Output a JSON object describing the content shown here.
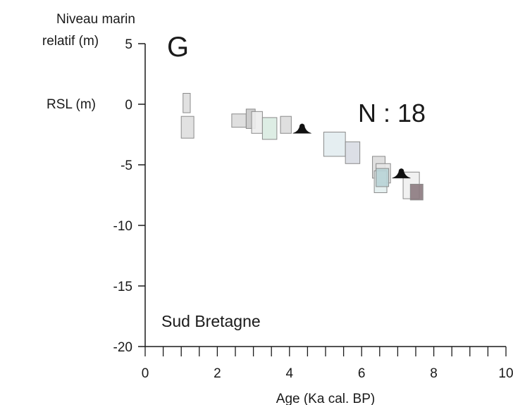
{
  "panel": {
    "letter": "G",
    "count_label": "N : 18",
    "region": "Sud Bretagne"
  },
  "chart_data": {
    "type": "scatter",
    "title": "",
    "xlabel": "Age (Ka cal. BP)",
    "ylabel_lines": [
      "Niveau marin",
      "relatif (m)"
    ],
    "ylabel_secondary": "RSL (m)",
    "xlim": [
      0,
      10
    ],
    "ylim": [
      -20,
      5
    ],
    "x_ticks": [
      0,
      2,
      4,
      6,
      8,
      10
    ],
    "x_tick_labels": [
      "0",
      "2",
      "4",
      "6",
      "8",
      "10"
    ],
    "x_minor_step": 0.5,
    "y_ticks": [
      5,
      0,
      -5,
      -10,
      -15,
      -20
    ],
    "y_tick_labels": [
      "5",
      "0",
      "-5",
      "-10",
      "-15",
      "-20"
    ],
    "grid": false,
    "legend": "none",
    "boxes": [
      {
        "x0": 1.05,
        "x1": 1.25,
        "y0": -0.7,
        "y1": 0.9,
        "color": "#dedede"
      },
      {
        "x0": 1.0,
        "x1": 1.35,
        "y0": -2.8,
        "y1": -1.0,
        "color": "#dedede"
      },
      {
        "x0": 2.4,
        "x1": 2.8,
        "y0": -1.9,
        "y1": -0.8,
        "color": "#dcdcdc"
      },
      {
        "x0": 2.8,
        "x1": 3.05,
        "y0": -2.0,
        "y1": -0.4,
        "color": "#c8c8c8"
      },
      {
        "x0": 2.95,
        "x1": 3.25,
        "y0": -2.4,
        "y1": -0.6,
        "color": "#ececec"
      },
      {
        "x0": 3.25,
        "x1": 3.65,
        "y0": -2.9,
        "y1": -1.1,
        "color": "#d9ebe1"
      },
      {
        "x0": 3.75,
        "x1": 4.05,
        "y0": -2.4,
        "y1": -1.0,
        "color": "#dcdcdc"
      },
      {
        "x0": 4.95,
        "x1": 5.55,
        "y0": -4.3,
        "y1": -2.3,
        "color": "#e2ecf0"
      },
      {
        "x0": 5.55,
        "x1": 5.95,
        "y0": -4.9,
        "y1": -3.1,
        "color": "#d8dbe3"
      },
      {
        "x0": 6.3,
        "x1": 6.65,
        "y0": -6.1,
        "y1": -4.3,
        "color": "#dcdcdc"
      },
      {
        "x0": 6.4,
        "x1": 6.8,
        "y0": -6.5,
        "y1": -4.9,
        "color": "#e6e6e6"
      },
      {
        "x0": 6.35,
        "x1": 6.7,
        "y0": -7.3,
        "y1": -5.5,
        "color": "#e2eeee"
      },
      {
        "x0": 6.4,
        "x1": 6.75,
        "y0": -6.8,
        "y1": -5.3,
        "color": "#b8d3d6"
      },
      {
        "x0": 7.15,
        "x1": 7.6,
        "y0": -7.8,
        "y1": -5.6,
        "color": "#f0f0f0"
      },
      {
        "x0": 7.35,
        "x1": 7.7,
        "y0": -7.9,
        "y1": -6.6,
        "color": "#8c7a80"
      }
    ],
    "markers": [
      {
        "x": 4.35,
        "y": -2.4,
        "symbol": "cone"
      },
      {
        "x": 7.1,
        "y": -6.1,
        "symbol": "cone"
      }
    ]
  }
}
